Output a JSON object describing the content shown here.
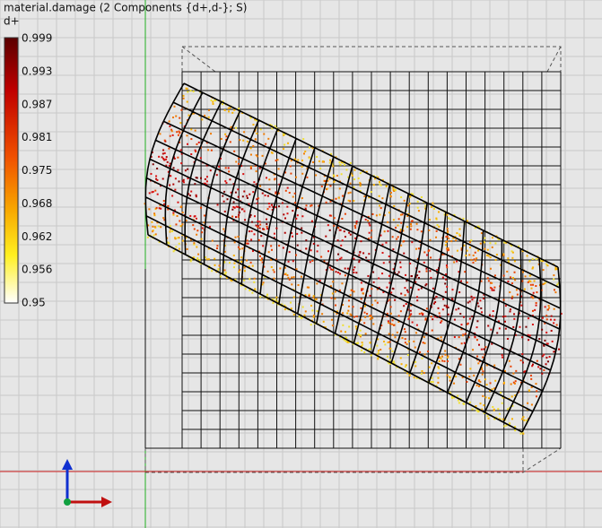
{
  "viewport": {
    "title": "material.damage (2 Components {d+,d-}; S)",
    "legend": {
      "label": "d+",
      "ticks": [
        "0.999",
        "0.993",
        "0.987",
        "0.981",
        "0.975",
        "0.968",
        "0.962",
        "0.956",
        "0.95"
      ]
    }
  }
}
